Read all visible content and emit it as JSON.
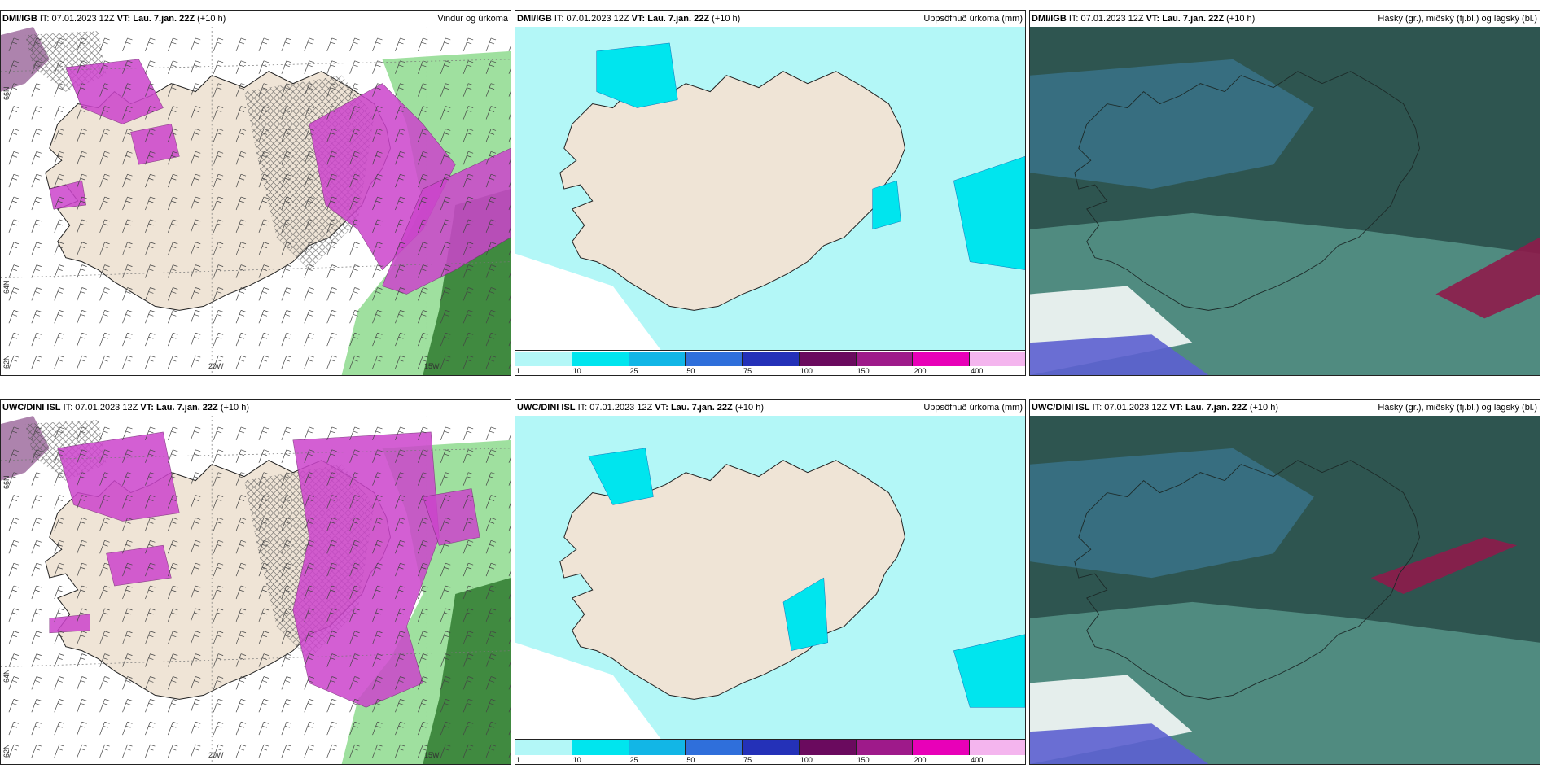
{
  "panels": [
    {
      "model": "DMI/IGB",
      "it_label": "IT:",
      "it_value": "07.01.2023 12Z",
      "vt_label": "VT:",
      "vt_value": "Lau. 7.jan. 22Z",
      "lead": "(+10 h)",
      "title": "Vindur og úrkoma",
      "kind": "wind"
    },
    {
      "model": "DMI/IGB",
      "it_label": "IT:",
      "it_value": "07.01.2023 12Z",
      "vt_label": "VT:",
      "vt_value": "Lau. 7.jan. 22Z",
      "lead": "(+10 h)",
      "title": "Uppsöfnuð úrkoma (mm)",
      "kind": "accum"
    },
    {
      "model": "DMI/IGB",
      "it_label": "IT:",
      "it_value": "07.01.2023 12Z",
      "vt_label": "VT:",
      "vt_value": "Lau. 7.jan. 22Z",
      "lead": "(+10 h)",
      "title": "Háský (gr.), miðský (fj.bl.) og lágský (bl.)",
      "kind": "cloud"
    },
    {
      "model": "UWC/DINI ISL",
      "it_label": "IT:",
      "it_value": "07.01.2023 12Z",
      "vt_label": "VT:",
      "vt_value": "Lau. 7.jan. 22Z",
      "lead": "(+10 h)",
      "title": "",
      "kind": "wind"
    },
    {
      "model": "UWC/DINI ISL",
      "it_label": "IT:",
      "it_value": "07.01.2023 12Z",
      "vt_label": "VT:",
      "vt_value": "Lau. 7.jan. 22Z",
      "lead": "(+10 h)",
      "title": "Uppsöfnuð úrkoma (mm)",
      "kind": "accum"
    },
    {
      "model": "UWC/DINI ISL",
      "it_label": "IT:",
      "it_value": "07.01.2023 12Z",
      "vt_label": "VT:",
      "vt_value": "Lau. 7.jan. 22Z",
      "lead": "(+10 h)",
      "title": "Háský (gr.), miðský (fj.bl.) og lágský (bl.)",
      "kind": "cloud"
    }
  ],
  "axis_labels": {
    "lon_20w": "20W",
    "lon_15w": "15W",
    "lat_66n": "66N",
    "lat_64n": "64N",
    "lat_62n": "62N"
  },
  "colorbar": {
    "levels": [
      "1",
      "10",
      "25",
      "50",
      "75",
      "100",
      "150",
      "200",
      "400"
    ],
    "colors": [
      "#b3f7f7",
      "#00e5ee",
      "#12b6e6",
      "#2f6fdb",
      "#2431b8",
      "#6a0a5e",
      "#9e1a8a",
      "#e800b8",
      "#f4b5ee"
    ]
  },
  "colors": {
    "land": "#efe4d6",
    "precip_magenta": "#cc44cc",
    "precip_green": "#9fe09f",
    "precip_darkgreen": "#2f7a2f",
    "accum_cyan": "#b3f7f7",
    "cloud_dark": "#2e5550",
    "cloud_blue": "#3d7fa0",
    "cloud_teal": "#6db8a8"
  }
}
